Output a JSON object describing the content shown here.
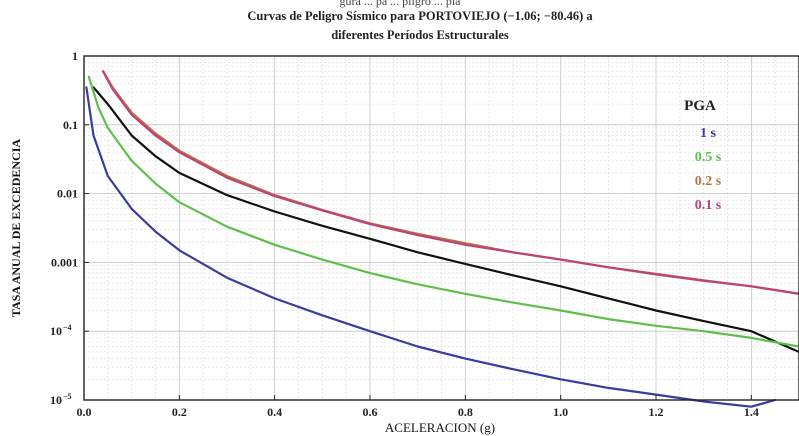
{
  "header": {
    "caption_fragment": "gura ... pa ... pligro ... pla"
  },
  "chart_data": {
    "type": "line",
    "title": "Curvas de Peligro Sísmico para PORTOVIEJO (−1.06; −80.46) a",
    "subtitle": "diferentes Períodos Estructurales",
    "xlabel": "ACELERACION (g)",
    "ylabel": "TASA ANUAL DE EXCEDENCIA",
    "xlim": [
      0.0,
      1.5
    ],
    "ylim": [
      1e-05,
      1
    ],
    "y_scale": "log",
    "grid": true,
    "legend_position": "top-right",
    "x_ticks": [
      "0.0",
      "0.2",
      "0.4",
      "0.6",
      "0.8",
      "1.0",
      "1.2",
      "1.4"
    ],
    "y_ticks": [
      {
        "value": 1,
        "label": "1",
        "exp": ""
      },
      {
        "value": 0.1,
        "label": "0.1",
        "exp": ""
      },
      {
        "value": 0.01,
        "label": "0.01",
        "exp": ""
      },
      {
        "value": 0.001,
        "label": "0.001",
        "exp": ""
      },
      {
        "value": 0.0001,
        "label": "10",
        "exp": "−4"
      },
      {
        "value": 1e-05,
        "label": "10",
        "exp": "−5"
      }
    ],
    "legend_title": "PGA",
    "series": [
      {
        "name": "PGA",
        "color": "#111111",
        "in_legend": false,
        "x": [
          0.02,
          0.05,
          0.1,
          0.15,
          0.2,
          0.3,
          0.4,
          0.5,
          0.6,
          0.7,
          0.8,
          0.9,
          1.0,
          1.1,
          1.2,
          1.3,
          1.4,
          1.5
        ],
        "y": [
          0.35,
          0.2,
          0.07,
          0.035,
          0.02,
          0.0095,
          0.0055,
          0.0034,
          0.0022,
          0.0014,
          0.00095,
          0.00065,
          0.00045,
          0.0003,
          0.0002,
          0.00014,
          0.0001,
          5e-05
        ]
      },
      {
        "name": "1 s",
        "color": "#3b3d9e",
        "in_legend": true,
        "x": [
          0.005,
          0.02,
          0.05,
          0.1,
          0.15,
          0.2,
          0.3,
          0.4,
          0.5,
          0.6,
          0.7,
          0.8,
          0.9,
          1.0,
          1.1,
          1.2,
          1.3,
          1.4,
          1.45
        ],
        "y": [
          0.35,
          0.07,
          0.018,
          0.006,
          0.0028,
          0.0015,
          0.0006,
          0.0003,
          0.00017,
          0.0001,
          6e-05,
          4e-05,
          2.8e-05,
          2e-05,
          1.5e-05,
          1.2e-05,
          9.5e-06,
          8e-06,
          1e-05
        ]
      },
      {
        "name": "0.5 s",
        "color": "#5fbf4a",
        "in_legend": true,
        "x": [
          0.01,
          0.03,
          0.05,
          0.1,
          0.15,
          0.2,
          0.3,
          0.4,
          0.5,
          0.6,
          0.7,
          0.8,
          0.9,
          1.0,
          1.1,
          1.2,
          1.3,
          1.4,
          1.5
        ],
        "y": [
          0.5,
          0.18,
          0.09,
          0.03,
          0.014,
          0.0075,
          0.0033,
          0.0018,
          0.0011,
          0.0007,
          0.00048,
          0.00035,
          0.00026,
          0.0002,
          0.00015,
          0.00012,
          0.0001,
          8e-05,
          6e-05
        ]
      },
      {
        "name": "0.2 s",
        "color": "#b07840",
        "in_legend": true,
        "x": [
          0.04,
          0.06,
          0.1,
          0.15,
          0.2,
          0.3,
          0.4,
          0.5,
          0.6,
          0.7,
          0.8,
          0.9,
          1.0,
          1.1,
          1.2,
          1.3,
          1.4,
          1.5
        ],
        "y": [
          0.6,
          0.35,
          0.15,
          0.075,
          0.042,
          0.018,
          0.0095,
          0.0058,
          0.0037,
          0.0026,
          0.0019,
          0.0014,
          0.0011,
          0.00085,
          0.00068,
          0.00055,
          0.00045,
          0.00035
        ]
      },
      {
        "name": "0.1 s",
        "color": "#c0407a",
        "in_legend": true,
        "x": [
          0.04,
          0.06,
          0.1,
          0.15,
          0.2,
          0.3,
          0.4,
          0.5,
          0.6,
          0.7,
          0.8,
          0.9,
          1.0,
          1.1,
          1.2,
          1.3,
          1.4,
          1.5
        ],
        "y": [
          0.6,
          0.33,
          0.14,
          0.07,
          0.04,
          0.017,
          0.0092,
          0.0057,
          0.0036,
          0.0025,
          0.0018,
          0.0014,
          0.0011,
          0.00085,
          0.00067,
          0.00054,
          0.00045,
          0.00035
        ]
      }
    ]
  }
}
